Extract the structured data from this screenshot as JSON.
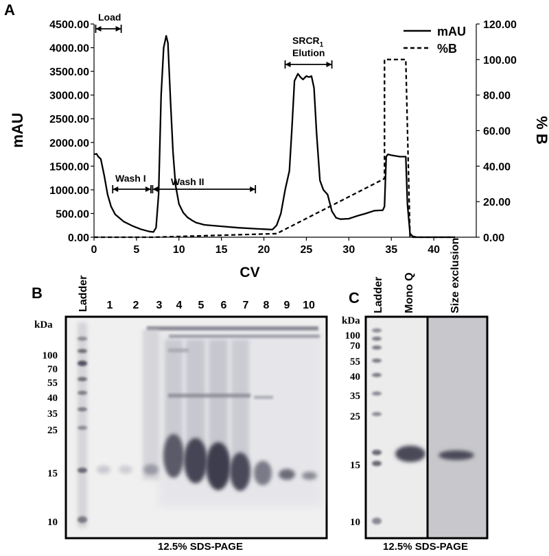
{
  "chart_data": [
    {
      "type": "line",
      "panel_label": "A",
      "xlabel": "CV",
      "ylabel": "mAU",
      "y2label": "% B",
      "xlim": [
        0,
        45
      ],
      "ylim": [
        0,
        4500
      ],
      "y2lim": [
        0,
        120
      ],
      "x_ticks": [
        "0",
        "5",
        "10",
        "15",
        "20",
        "25",
        "30",
        "35",
        "40"
      ],
      "y_ticks": [
        "0.00",
        "500.00",
        "1000.00",
        "1500.00",
        "2000.00",
        "2500.00",
        "3000.00",
        "3500.00",
        "4000.00",
        "4500.00"
      ],
      "y2_ticks": [
        "0.00",
        "20.00",
        "40.00",
        "60.00",
        "80.00",
        "100.00",
        "120.00"
      ],
      "legend_position": "top-right",
      "series": [
        {
          "name": "mAU",
          "axis": "left",
          "style": "solid",
          "x": [
            0,
            0.3,
            0.5,
            0.8,
            1.2,
            1.6,
            2.0,
            2.5,
            3.5,
            4.5,
            5.5,
            6.5,
            7.0,
            7.3,
            7.6,
            7.9,
            8.2,
            8.5,
            8.7,
            9.0,
            9.3,
            9.6,
            10.0,
            10.5,
            11.0,
            11.5,
            12.0,
            13.0,
            15.0,
            17.0,
            19.0,
            21.0,
            21.5,
            22.0,
            22.5,
            23.0,
            23.3,
            23.6,
            24.0,
            24.3,
            24.6,
            25.0,
            25.3,
            25.6,
            25.9,
            26.2,
            26.6,
            27.0,
            27.5,
            28.0,
            28.5,
            29.0,
            30.0,
            31.0,
            32.0,
            33.0,
            34.0,
            34.2,
            34.4,
            34.6,
            35.0,
            36.0,
            36.7,
            36.9,
            37.2,
            37.5,
            38.0,
            40.0,
            42.0,
            42.5
          ],
          "y": [
            1750,
            1760,
            1700,
            1650,
            1300,
            900,
            650,
            480,
            330,
            240,
            170,
            120,
            110,
            200,
            900,
            3000,
            4000,
            4250,
            4100,
            2900,
            1800,
            1100,
            700,
            520,
            420,
            360,
            310,
            260,
            230,
            200,
            180,
            160,
            250,
            500,
            1000,
            1400,
            2300,
            3300,
            3450,
            3380,
            3330,
            3400,
            3380,
            3400,
            3150,
            2200,
            1200,
            1000,
            900,
            550,
            410,
            380,
            390,
            450,
            500,
            560,
            570,
            650,
            1700,
            1750,
            1730,
            1700,
            1700,
            700,
            80,
            20,
            0,
            0,
            0,
            0
          ]
        },
        {
          "name": "%B",
          "axis": "right",
          "style": "dashed",
          "x": [
            0,
            7.0,
            21.5,
            34.2,
            34.2,
            36.7,
            37.2,
            42.5
          ],
          "y": [
            0,
            0,
            2,
            33,
            100,
            100,
            0,
            0
          ]
        }
      ],
      "annotations": [
        {
          "text": "Load",
          "from": 0.2,
          "to": 3.2
        },
        {
          "text": "Wash I",
          "from": 2.2,
          "to": 6.7
        },
        {
          "text": "Wash II",
          "from": 6.9,
          "to": 19.0
        },
        {
          "text": "SRCR",
          "subscript": "1",
          "text2": "Elution",
          "from": 22.5,
          "to": 28.0
        }
      ]
    },
    {
      "type": "gel",
      "panel_label": "B",
      "unit_label": "kDa",
      "lane_labels": [
        "Ladder",
        "1",
        "2",
        "3",
        "4",
        "5",
        "6",
        "7",
        "8",
        "9",
        "10"
      ],
      "marker_labels": [
        "100",
        "70",
        "55",
        "40",
        "35",
        "25",
        "15",
        "10"
      ],
      "caption": "12.5% SDS-PAGE"
    },
    {
      "type": "gel",
      "panel_label": "C",
      "unit_label": "kDa",
      "lane_labels": [
        "Ladder",
        "Mono Q",
        "Size exclusion"
      ],
      "marker_labels": [
        "100",
        "70",
        "55",
        "40",
        "35",
        "25",
        "15",
        "10"
      ],
      "caption": "12.5% SDS-PAGE"
    }
  ]
}
